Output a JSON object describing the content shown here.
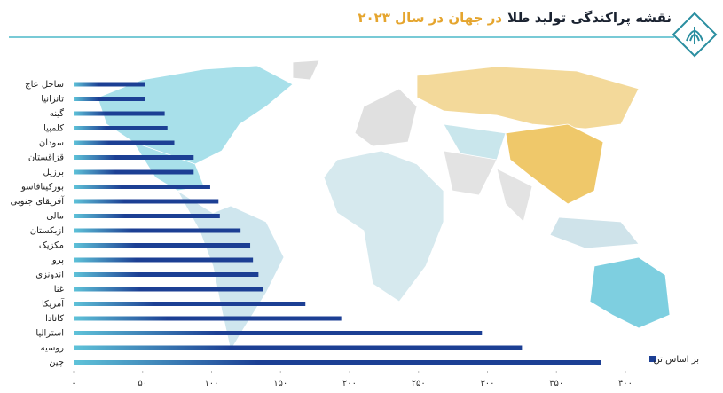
{
  "chart_data": {
    "type": "bar",
    "orientation": "horizontal",
    "title": "نقشه پراکندگی تولید طلا",
    "title_highlight": "در جهان در سال ۲۰۲۳",
    "categories": [
      "ساحل عاج",
      "تانزانیا",
      "گینه",
      "کلمبیا",
      "سودان",
      "قزاقستان",
      "برزیل",
      "بورکینافاسو",
      "آفریقای جنوبی",
      "مالی",
      "ازبکستان",
      "مکزیک",
      "پرو",
      "اندونزی",
      "غنا",
      "آمریکا",
      "کانادا",
      "استرالیا",
      "روسیه",
      "چین"
    ],
    "series": [
      {
        "name": "بر اساس تن",
        "color": "#1c3f94",
        "values": [
          52,
          52,
          66,
          68,
          73,
          87,
          87,
          99,
          105,
          106,
          121,
          128,
          130,
          134,
          137,
          168,
          194,
          296,
          325,
          382
        ]
      }
    ],
    "xlim": [
      0,
      400
    ],
    "xticks": [
      {
        "value": 0,
        "label": "۰"
      },
      {
        "value": 50,
        "label": "۵۰"
      },
      {
        "value": 100,
        "label": "۱۰۰"
      },
      {
        "value": 150,
        "label": "۱۵۰"
      },
      {
        "value": 200,
        "label": "۲۰۰"
      },
      {
        "value": 250,
        "label": "۲۵۰"
      },
      {
        "value": 300,
        "label": "۳۰۰"
      },
      {
        "value": 350,
        "label": "۳۵۰"
      },
      {
        "value": 400,
        "label": "۴۰۰"
      }
    ],
    "legend": "bottom-right",
    "grid": false
  }
}
